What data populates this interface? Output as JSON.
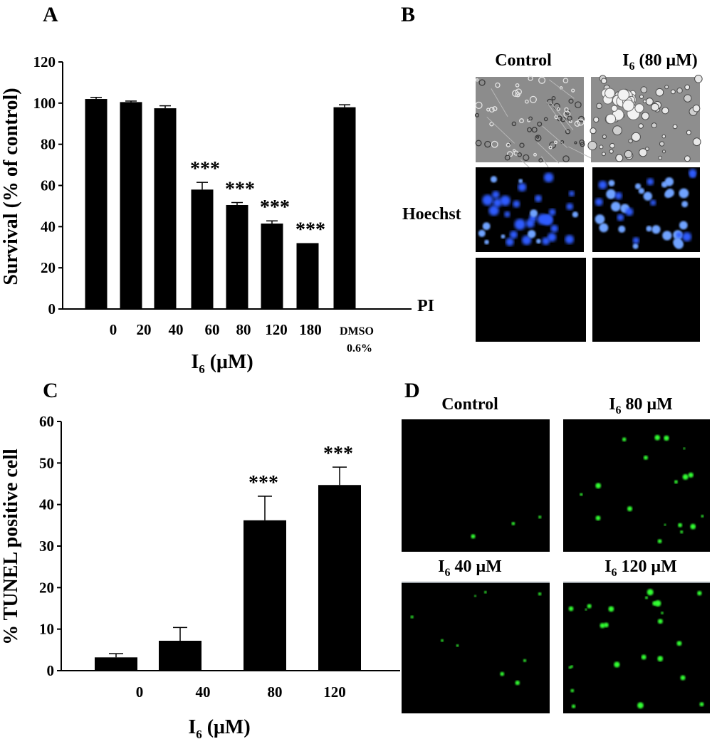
{
  "panels": {
    "a_letter": "A",
    "b_letter": "B",
    "c_letter": "C",
    "d_letter": "D"
  },
  "chart_data": [
    {
      "type": "bar",
      "panel": "A",
      "categories": [
        "0",
        "20",
        "40",
        "60",
        "80",
        "120",
        "180",
        "DMSO 0.6%"
      ],
      "category_lines": [
        [
          "0"
        ],
        [
          "20"
        ],
        [
          "40"
        ],
        [
          "60"
        ],
        [
          "80"
        ],
        [
          "120"
        ],
        [
          "180"
        ],
        [
          "DMSO",
          "0.6%"
        ]
      ],
      "values": [
        102,
        100.5,
        97.5,
        58,
        50.5,
        41.5,
        32,
        98
      ],
      "errors": [
        0.8,
        0.5,
        1.2,
        3.5,
        1.2,
        1.3,
        0,
        1.2
      ],
      "significance": [
        "",
        "",
        "",
        "***",
        "***",
        "***",
        "***",
        ""
      ],
      "title": "",
      "xlabel": "I6 (μM)",
      "xlabel_main": "I",
      "xlabel_sub": "6",
      "xlabel_rest": " (μM)",
      "ylabel": "Survival (% of control)",
      "ylim": [
        0,
        120
      ],
      "yticks": [
        0,
        20,
        40,
        60,
        80,
        100,
        120
      ],
      "grid": false
    },
    {
      "type": "bar",
      "panel": "C",
      "categories": [
        "0",
        "40",
        "80",
        "120"
      ],
      "values": [
        3.2,
        7.2,
        36.2,
        44.7
      ],
      "errors": [
        0.9,
        3.2,
        5.8,
        4.3
      ],
      "significance": [
        "",
        "",
        "***",
        "***"
      ],
      "title": "",
      "xlabel": "I6 (μM)",
      "xlabel_main": "I",
      "xlabel_sub": "6",
      "xlabel_rest": " (μM)",
      "ylabel": "% TUNEL positive cell",
      "ylim": [
        0,
        60
      ],
      "yticks": [
        0,
        10,
        20,
        30,
        40,
        50,
        60
      ],
      "grid": false
    }
  ],
  "panel_b": {
    "col_control": "Control",
    "col_treated_main": "I",
    "col_treated_sub": "6",
    "col_treated_rest": " (80 μM)",
    "row_hoechst": "Hoechst",
    "row_pi": "PI",
    "colors": {
      "phase": "#8a8a8a",
      "fluor_bg": "#000000",
      "hoechst": "#2f5cff",
      "hoechst_bright": "#6fa3ff"
    }
  },
  "panel_d": {
    "label_control": "Control",
    "label_80_main": "I",
    "label_80_sub": "6",
    "label_80_rest": " 80 μM",
    "label_40_main": "I",
    "label_40_sub": "6",
    "label_40_rest": " 40 μM",
    "label_120_main": "I",
    "label_120_sub": "6",
    "label_120_rest": " 120 μM",
    "colors": {
      "fluor_bg": "#000000",
      "tunel": "#33ff33"
    }
  }
}
